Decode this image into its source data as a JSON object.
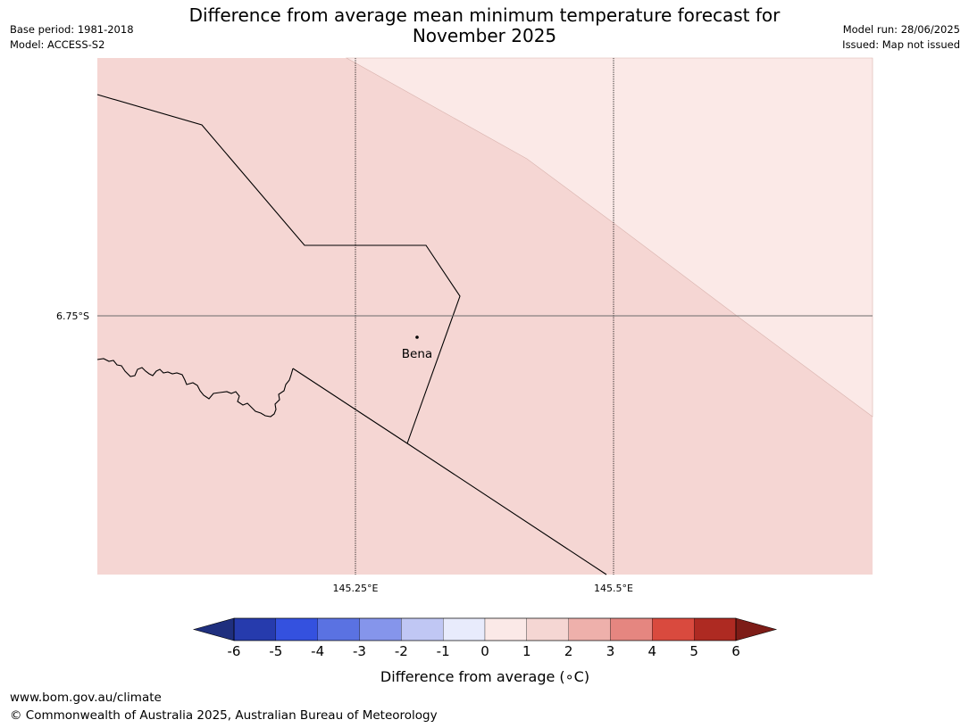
{
  "title_line1": "Difference from average mean minimum temperature forecast for",
  "title_line2": "November 2025",
  "meta": {
    "base_period": "Base period: 1981-2018",
    "model": "Model: ACCESS-S2",
    "model_run": "Model run: 28/06/2025",
    "issued": "Issued: Map not issued"
  },
  "map": {
    "place_label": "Bena",
    "lat_label": "6.75°S",
    "lon_labels": [
      "145.25°E",
      "145.5°E"
    ],
    "region_colors": {
      "band_1_2": "#f5d6d3",
      "band_0_1": "#fbe9e7"
    }
  },
  "colorbar": {
    "label": "Difference from average (∘C)",
    "ticks": [
      "-6",
      "-5",
      "-4",
      "-3",
      "-2",
      "-1",
      "0",
      "1",
      "2",
      "3",
      "4",
      "5",
      "6"
    ],
    "under_color": "#1f2f7e",
    "over_color": "#7d1c17",
    "colors": [
      "#263bad",
      "#3451df",
      "#5a72e2",
      "#8595eb",
      "#c0c7f4",
      "#e8ebfc",
      "#fbe9e7",
      "#f5d6d3",
      "#eeb0ab",
      "#e58680",
      "#d94a3e",
      "#ae2a22"
    ]
  },
  "footer": {
    "url": "www.bom.gov.au/climate",
    "copyright": "© Commonwealth of Australia 2025, Australian Bureau of Meteorology"
  }
}
